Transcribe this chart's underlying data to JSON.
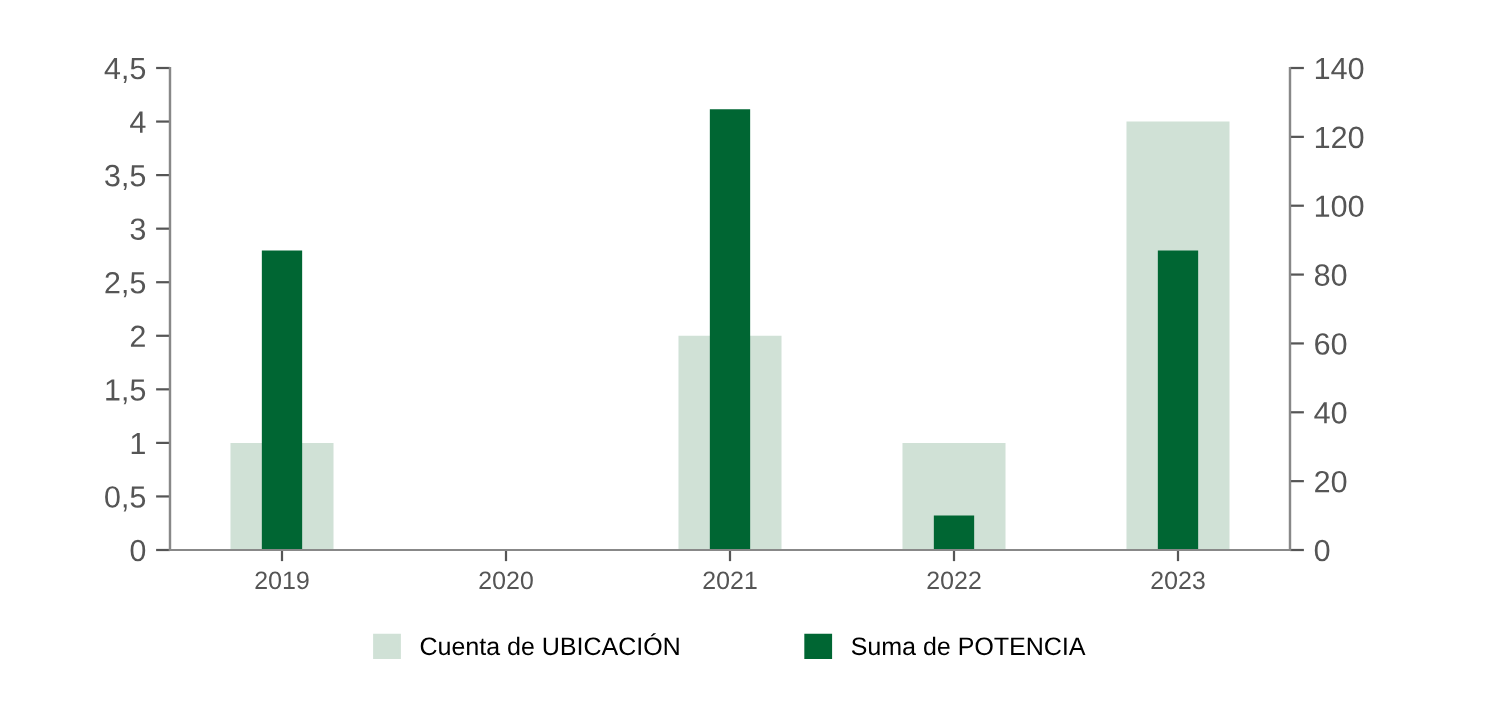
{
  "chart_data": {
    "type": "bar",
    "categories": [
      "2019",
      "2020",
      "2021",
      "2022",
      "2023"
    ],
    "series": [
      {
        "name": "Cuenta de UBICACIÓN",
        "color": "#d0e1d6",
        "values": [
          1,
          0,
          2,
          1,
          4
        ]
      },
      {
        "name": "Suma de POTENCIA",
        "color": "#006633",
        "values": [
          87,
          null,
          128,
          10,
          87
        ],
        "axis": "y2"
      }
    ],
    "ylim": [
      0,
      4.5
    ],
    "yticks": [
      0,
      {
        "value": 0.5,
        "label": "0,5"
      },
      1,
      {
        "value": 1.5,
        "label": "1,5"
      },
      2,
      {
        "value": 2.5,
        "label": "2,5"
      },
      3,
      {
        "value": 3.5,
        "label": "3,5"
      },
      4,
      {
        "value": 4.5,
        "label": "4,5"
      }
    ],
    "y2lim": [
      0,
      140
    ],
    "y2ticks": [
      0,
      20,
      40,
      60,
      80,
      100,
      120,
      140
    ],
    "grid": false,
    "legend": "bottom"
  }
}
